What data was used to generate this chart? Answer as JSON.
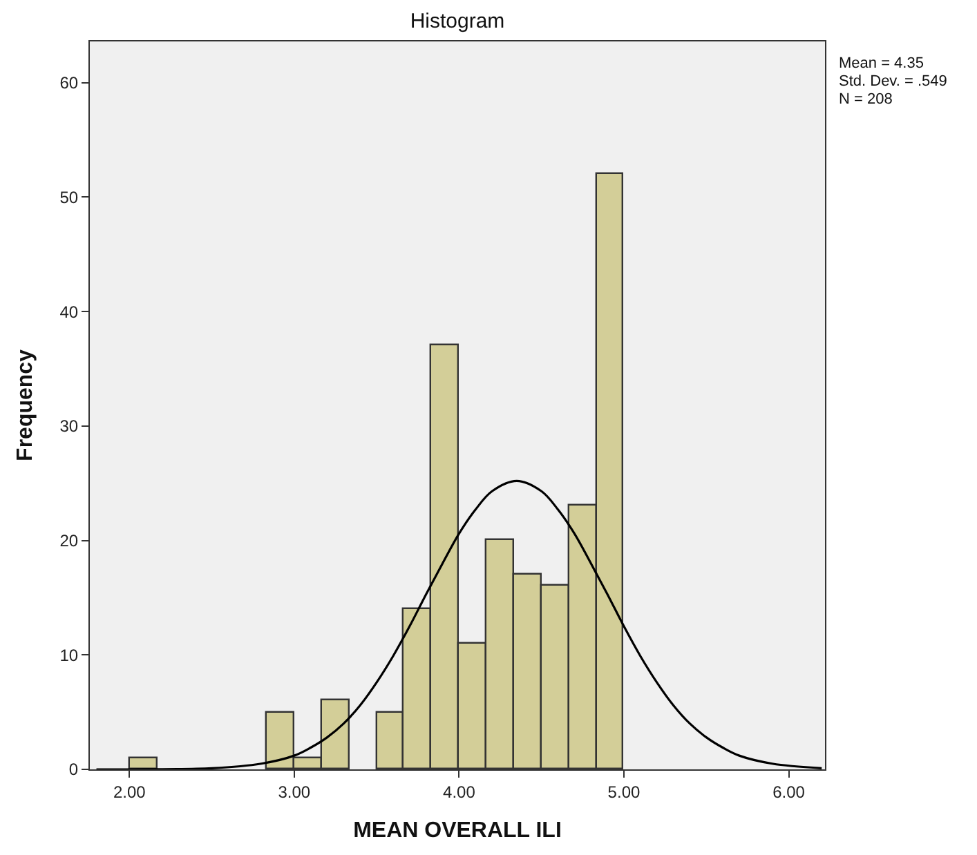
{
  "chart_data": {
    "type": "histogram",
    "title": "Histogram",
    "xlabel": "MEAN OVERALL ILI",
    "ylabel": "Frequency",
    "bins": [
      2.0,
      2.167,
      2.333,
      2.5,
      2.667,
      2.833,
      3.0,
      3.167,
      3.333,
      3.5,
      3.667,
      3.833,
      4.0,
      4.167,
      4.333,
      4.5,
      4.667,
      4.833,
      5.0
    ],
    "values": [
      1,
      0,
      0,
      0,
      0,
      5,
      1,
      6,
      0,
      5,
      14,
      37,
      11,
      20,
      17,
      16,
      23,
      52
    ],
    "color": "#d3ce98",
    "series": [
      {
        "type": "line",
        "color": "#000000",
        "x": [
          1.8,
          2.0,
          2.5,
          2.8,
          3.0,
          3.1,
          3.2,
          3.3,
          3.4,
          3.5,
          3.6,
          3.7,
          3.8,
          3.9,
          4.0,
          4.1,
          4.2,
          4.35,
          4.5,
          4.6,
          4.7,
          4.8,
          4.9,
          5.0,
          5.1,
          5.2,
          5.3,
          5.4,
          5.5,
          5.6,
          5.7,
          5.9,
          6.2
        ],
        "values": [
          0,
          0,
          0.1,
          0.5,
          1.2,
          1.9,
          2.8,
          4,
          5.6,
          7.6,
          9.9,
          12.5,
          15.3,
          18,
          20.6,
          22.7,
          24.3,
          25.2,
          24.3,
          22.7,
          20.6,
          18,
          15.3,
          12.5,
          9.9,
          7.6,
          5.6,
          4,
          2.8,
          1.9,
          1.2,
          0.5,
          0.1
        ]
      }
    ],
    "xlim": [
      1.76,
      6.22
    ],
    "xticks": [
      {
        "value": 2,
        "label": "2.00"
      },
      {
        "value": 3,
        "label": "3.00"
      },
      {
        "value": 4,
        "label": "4.00"
      },
      {
        "value": 5,
        "label": "5.00"
      },
      {
        "value": 6,
        "label": "6.00"
      }
    ],
    "ylim": [
      0,
      63.6
    ],
    "yticks": [
      0,
      10,
      20,
      30,
      40,
      50,
      60
    ],
    "annotations": [
      "Mean = 4.35",
      "Std. Dev. = .549",
      "N = 208"
    ]
  }
}
